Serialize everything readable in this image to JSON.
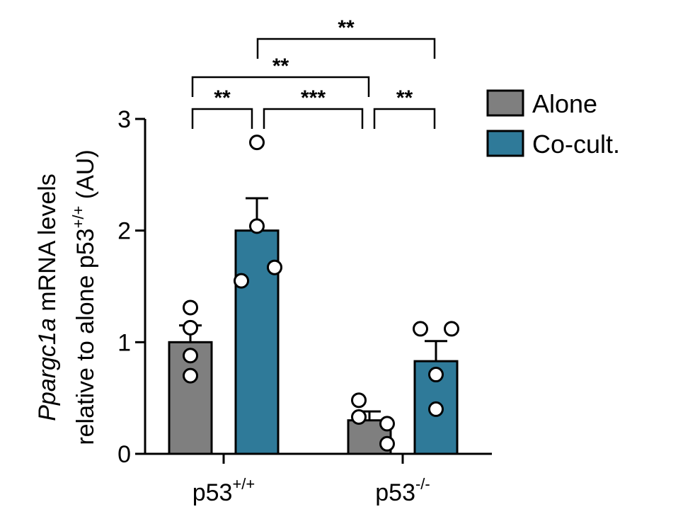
{
  "chart_data": {
    "type": "bar",
    "ylabel": {
      "line1_italic": "Ppargc1a",
      "line1_rest": " mRNA levels",
      "line2_main": "relative to alone p53",
      "line2_sup": "+/+",
      "line2_tail": " (AU)"
    },
    "categories": [
      {
        "main": "p53",
        "sup": "+/+"
      },
      {
        "main": "p53",
        "sup": "-/-"
      }
    ],
    "ylim": [
      0,
      3
    ],
    "yticks": [
      0,
      1,
      2,
      3
    ],
    "legend_position": "top-right",
    "series": [
      {
        "name": "Alone",
        "color": "#7f7f7f",
        "values": [
          1.0,
          0.3
        ],
        "errors": [
          0.15,
          0.08
        ],
        "points": [
          [
            1.31,
            1.13,
            0.88,
            0.7
          ],
          [
            0.48,
            0.33,
            0.27,
            0.09
          ]
        ]
      },
      {
        "name": "Co-cult.",
        "color": "#2f7a99",
        "values": [
          2.0,
          0.83
        ],
        "errors": [
          0.29,
          0.18
        ],
        "points": [
          [
            2.79,
            2.04,
            1.67,
            1.55
          ],
          [
            1.12,
            1.12,
            0.71,
            0.4
          ]
        ]
      }
    ],
    "significance": [
      {
        "label": "**",
        "from": [
          0,
          0
        ],
        "to": [
          0,
          1
        ]
      },
      {
        "label": "***",
        "from": [
          0,
          1
        ],
        "to": [
          1,
          0
        ]
      },
      {
        "label": "**",
        "from": [
          1,
          0
        ],
        "to": [
          1,
          1
        ]
      },
      {
        "label": "**",
        "from": [
          0,
          0
        ],
        "to": [
          1,
          0
        ]
      },
      {
        "label": "**",
        "from": [
          0,
          1
        ],
        "to": [
          1,
          1
        ]
      }
    ]
  }
}
